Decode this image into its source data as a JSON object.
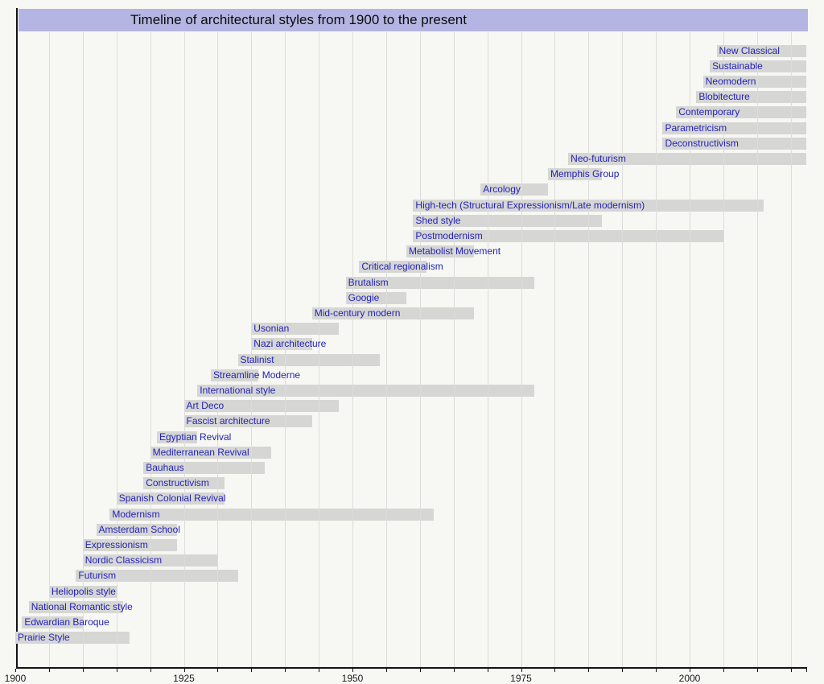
{
  "header": {
    "title": "Timeline of architectural styles from 1900 to the present"
  },
  "chart_data": {
    "type": "bar",
    "variant": "horizontal-gantt-timeline",
    "title": "Timeline of architectural styles from 1900 to the present",
    "x_axis": {
      "min": 1900,
      "max": 2017,
      "major_ticks": [
        1900,
        1925,
        1950,
        1975,
        2000
      ],
      "minor_tick_step": 5,
      "grid": true
    },
    "legend": null,
    "colors": {
      "bar": "#d6d6d4",
      "bar_label": "#2323b8",
      "title_bg": "#b5b5e3",
      "grid": "#dcdcda",
      "axis": "#141414",
      "background": "#f7f7f3"
    },
    "styles": [
      {
        "name": "New Classical",
        "start": 2004,
        "end": 2017,
        "till_present": true
      },
      {
        "name": "Sustainable",
        "start": 2003,
        "end": 2017,
        "till_present": true
      },
      {
        "name": "Neomodern",
        "start": 2002,
        "end": 2017,
        "till_present": true
      },
      {
        "name": "Blobitecture",
        "start": 2001,
        "end": 2017,
        "till_present": true
      },
      {
        "name": "Contemporary",
        "start": 1998,
        "end": 2017,
        "till_present": true
      },
      {
        "name": "Parametricism",
        "start": 1996,
        "end": 2017,
        "till_present": true
      },
      {
        "name": "Deconstructivism",
        "start": 1996,
        "end": 2017,
        "till_present": true
      },
      {
        "name": "Neo-futurism",
        "start": 1982,
        "end": 2017,
        "till_present": true
      },
      {
        "name": "Memphis Group",
        "start": 1979,
        "end": 1987,
        "till_present": false
      },
      {
        "name": "Arcology",
        "start": 1969,
        "end": 1979,
        "till_present": false
      },
      {
        "name": "High-tech (Structural Expressionism/Late modernism)",
        "start": 1959,
        "end": 2011,
        "till_present": false
      },
      {
        "name": "Shed style",
        "start": 1959,
        "end": 1987,
        "till_present": false
      },
      {
        "name": "Postmodernism",
        "start": 1959,
        "end": 2005,
        "till_present": false
      },
      {
        "name": "Metabolist Movement",
        "start": 1958,
        "end": 1968,
        "till_present": false
      },
      {
        "name": "Critical regionalism",
        "start": 1951,
        "end": 1961,
        "till_present": false
      },
      {
        "name": "Brutalism",
        "start": 1949,
        "end": 1977,
        "till_present": false
      },
      {
        "name": "Googie",
        "start": 1949,
        "end": 1958,
        "till_present": false
      },
      {
        "name": "Mid-century modern",
        "start": 1944,
        "end": 1968,
        "till_present": false
      },
      {
        "name": "Usonian",
        "start": 1935,
        "end": 1948,
        "till_present": false
      },
      {
        "name": "Nazi architecture",
        "start": 1935,
        "end": 1944,
        "till_present": false
      },
      {
        "name": "Stalinist",
        "start": 1933,
        "end": 1954,
        "till_present": false
      },
      {
        "name": "Streamline Moderne",
        "start": 1929,
        "end": 1936,
        "till_present": false
      },
      {
        "name": "International style",
        "start": 1927,
        "end": 1977,
        "till_present": false
      },
      {
        "name": "Art Deco",
        "start": 1925,
        "end": 1948,
        "till_present": false
      },
      {
        "name": "Fascist architecture",
        "start": 1925,
        "end": 1944,
        "till_present": false
      },
      {
        "name": "Egyptian Revival",
        "start": 1921,
        "end": 1927,
        "till_present": false
      },
      {
        "name": "Mediterranean Revival",
        "start": 1920,
        "end": 1938,
        "till_present": false
      },
      {
        "name": "Bauhaus",
        "start": 1919,
        "end": 1937,
        "till_present": false
      },
      {
        "name": "Constructivism",
        "start": 1919,
        "end": 1931,
        "till_present": false
      },
      {
        "name": "Spanish Colonial Revival",
        "start": 1915,
        "end": 1931,
        "till_present": false
      },
      {
        "name": "Modernism",
        "start": 1914,
        "end": 1962,
        "till_present": false
      },
      {
        "name": "Amsterdam School",
        "start": 1912,
        "end": 1924,
        "till_present": false
      },
      {
        "name": "Expressionism",
        "start": 1910,
        "end": 1924,
        "till_present": false
      },
      {
        "name": "Nordic Classicism",
        "start": 1910,
        "end": 1930,
        "till_present": false
      },
      {
        "name": "Futurism",
        "start": 1909,
        "end": 1933,
        "till_present": false
      },
      {
        "name": "Heliopolis style",
        "start": 1905,
        "end": 1915,
        "till_present": false
      },
      {
        "name": "National Romantic style",
        "start": 1902,
        "end": 1916,
        "till_present": false
      },
      {
        "name": "Edwardian Baroque",
        "start": 1901,
        "end": 1910,
        "till_present": false
      },
      {
        "name": "Prairie Style",
        "start": 1900,
        "end": 1917,
        "till_present": false
      }
    ]
  }
}
